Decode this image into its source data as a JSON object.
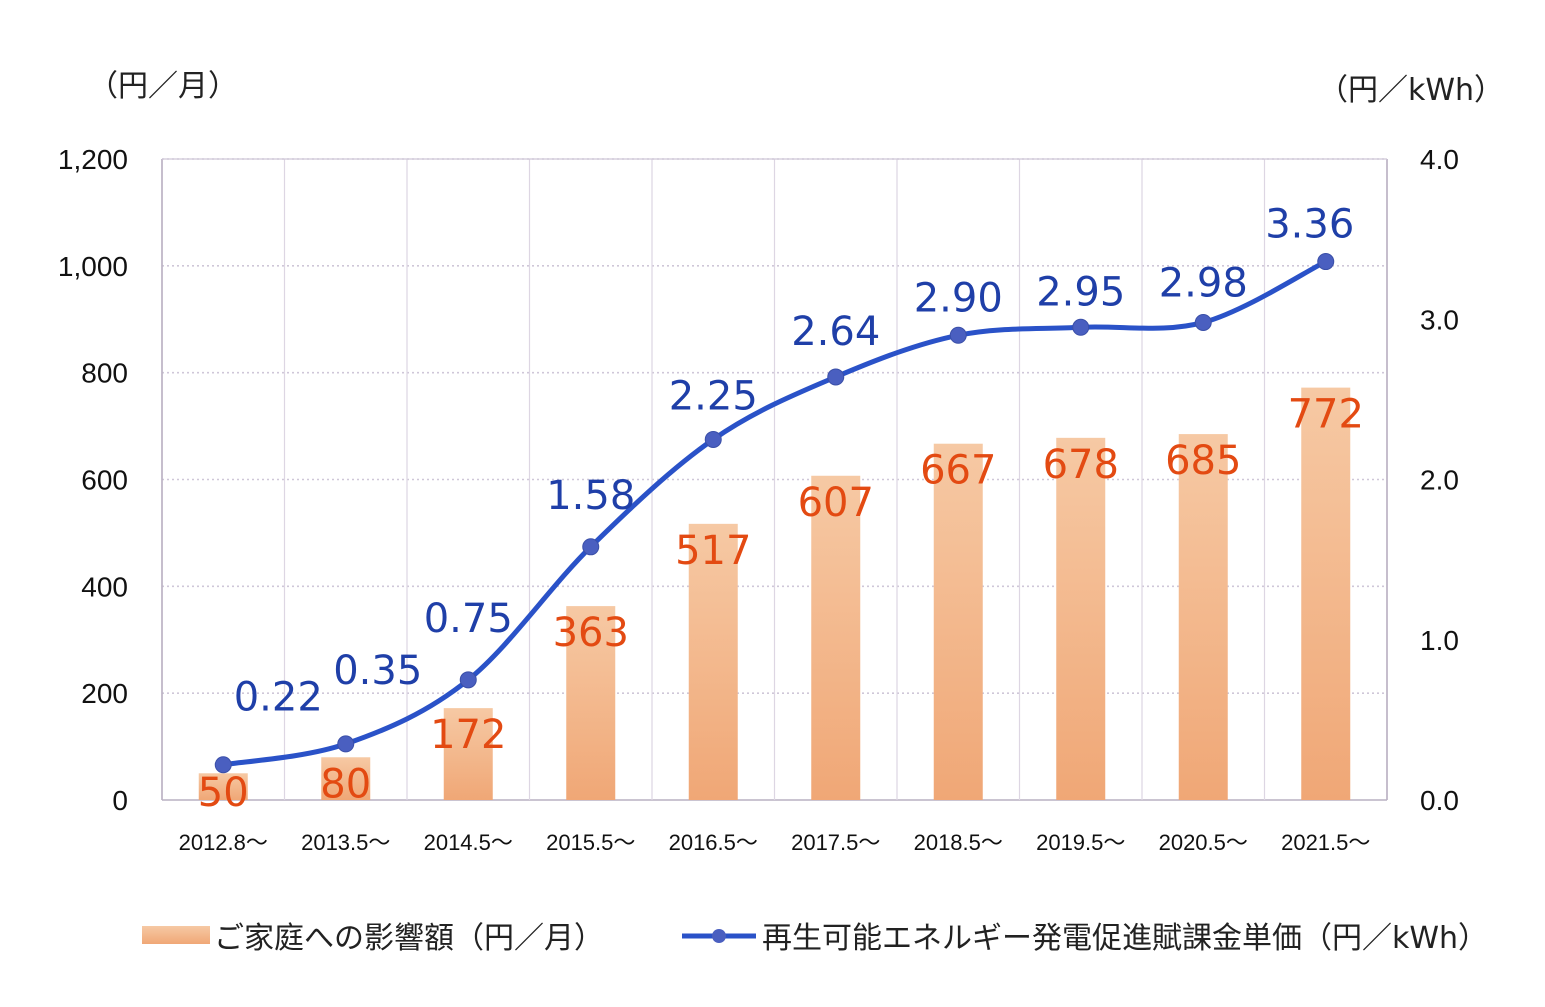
{
  "chart_data": {
    "type": "bar",
    "categories": [
      "2012.8～",
      "2013.5～",
      "2014.5～",
      "2015.5～",
      "2016.5～",
      "2017.5～",
      "2018.5～",
      "2019.5～",
      "2020.5～",
      "2021.5～"
    ],
    "series": [
      {
        "name": "ご家庭への影響額（円／月）",
        "type": "bar",
        "axis": "left",
        "values": [
          50,
          80,
          172,
          363,
          517,
          607,
          667,
          678,
          685,
          772
        ],
        "color": "#f3b386"
      },
      {
        "name": "再生可能エネルギー発電促進賦課金単価（円／kWh）",
        "type": "line",
        "axis": "right",
        "values": [
          0.22,
          0.35,
          0.75,
          1.58,
          2.25,
          2.64,
          2.9,
          2.95,
          2.98,
          3.36
        ],
        "color": "#2a52c8"
      }
    ],
    "ylabel": "（円／月）",
    "y2label": "（円／kWh）",
    "ylim": [
      0,
      1200
    ],
    "y2lim": [
      0,
      4.0
    ],
    "yticks": [
      "0",
      "200",
      "400",
      "600",
      "800",
      "1,000",
      "1,200"
    ],
    "y2ticks": [
      "0.0",
      "1.0",
      "2.0",
      "3.0",
      "4.0"
    ],
    "grid": true,
    "legend_position": "bottom",
    "bar_label_color": "#e34a12",
    "line_label_color": "#1f3fa8"
  }
}
